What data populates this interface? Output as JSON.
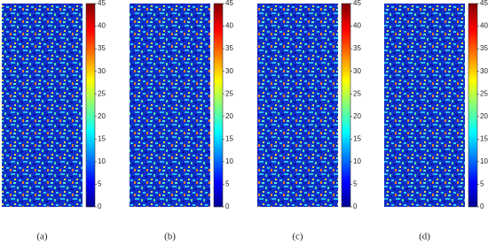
{
  "chart_data": [
    {
      "type": "heatmap",
      "caption": "(a)",
      "clim": [
        0,
        45
      ],
      "cticks": [
        0,
        5,
        10,
        15,
        20,
        25,
        30,
        35,
        40,
        45
      ]
    },
    {
      "type": "heatmap",
      "caption": "(b)",
      "clim": [
        0,
        45
      ],
      "cticks": [
        0,
        5,
        10,
        15,
        20,
        25,
        30,
        35,
        40,
        45
      ]
    },
    {
      "type": "heatmap",
      "caption": "(c)",
      "clim": [
        0,
        45
      ],
      "cticks": [
        0,
        5,
        10,
        15,
        20,
        25,
        30,
        35,
        40,
        45
      ]
    },
    {
      "type": "heatmap",
      "caption": "(d)",
      "clim": [
        0,
        45
      ],
      "cticks": [
        0,
        5,
        10,
        15,
        20,
        25,
        30,
        35,
        40,
        45
      ]
    }
  ]
}
